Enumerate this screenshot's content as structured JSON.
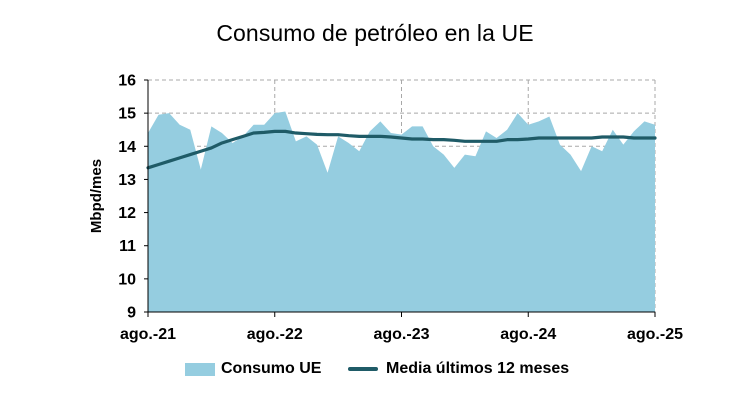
{
  "title": "Consumo de petróleo en la UE",
  "chart_data": {
    "type": "area",
    "title": "Consumo de petróleo en la UE",
    "xlabel": "",
    "ylabel": "Mbpd/mes",
    "ylim": [
      9,
      16
    ],
    "yticks": [
      9,
      10,
      11,
      12,
      13,
      14,
      15,
      16
    ],
    "xticks": [
      "ago.-21",
      "ago.-22",
      "ago.-23",
      "ago.-24",
      "ago.-25"
    ],
    "grid": true,
    "legend_position": "bottom",
    "x": [
      "ago.-21",
      "sep.-21",
      "oct.-21",
      "nov.-21",
      "dic.-21",
      "ene.-22",
      "feb.-22",
      "mar.-22",
      "abr.-22",
      "may.-22",
      "jun.-22",
      "jul.-22",
      "ago.-22",
      "sep.-22",
      "oct.-22",
      "nov.-22",
      "dic.-22",
      "ene.-23",
      "feb.-23",
      "mar.-23",
      "abr.-23",
      "may.-23",
      "jun.-23",
      "jul.-23",
      "ago.-23",
      "sep.-23",
      "oct.-23",
      "nov.-23",
      "dic.-23",
      "ene.-24",
      "feb.-24",
      "mar.-24",
      "abr.-24",
      "may.-24",
      "jun.-24",
      "jul.-24",
      "ago.-24",
      "sep.-24",
      "oct.-24",
      "nov.-24",
      "dic.-24",
      "ene.-25",
      "feb.-25",
      "mar.-25",
      "abr.-25",
      "may.-25",
      "jun.-25",
      "jul.-25",
      "ago.-25"
    ],
    "series": [
      {
        "name": "Consumo UE",
        "kind": "area",
        "color": "#95cde0",
        "values": [
          14.4,
          14.95,
          15.0,
          14.65,
          14.5,
          13.3,
          14.6,
          14.4,
          14.1,
          14.3,
          14.65,
          14.65,
          15.0,
          15.05,
          14.15,
          14.3,
          14.05,
          13.2,
          14.3,
          14.1,
          13.85,
          14.45,
          14.75,
          14.4,
          14.35,
          14.6,
          14.6,
          14.0,
          13.75,
          13.35,
          13.75,
          13.7,
          14.45,
          14.25,
          14.5,
          15.0,
          14.65,
          14.75,
          14.9,
          14.05,
          13.75,
          13.25,
          14.0,
          13.85,
          14.5,
          14.05,
          14.45,
          14.75,
          14.65
        ]
      },
      {
        "name": "Media últimos 12 meses",
        "kind": "line",
        "color": "#1f5b67",
        "values": [
          13.35,
          13.45,
          13.55,
          13.65,
          13.75,
          13.85,
          13.95,
          14.1,
          14.2,
          14.3,
          14.4,
          14.42,
          14.45,
          14.45,
          14.4,
          14.38,
          14.36,
          14.35,
          14.35,
          14.32,
          14.3,
          14.3,
          14.3,
          14.28,
          14.25,
          14.22,
          14.22,
          14.2,
          14.2,
          14.18,
          14.15,
          14.15,
          14.15,
          14.15,
          14.2,
          14.2,
          14.22,
          14.25,
          14.25,
          14.25,
          14.25,
          14.25,
          14.25,
          14.28,
          14.28,
          14.28,
          14.25,
          14.25,
          14.25
        ]
      }
    ]
  },
  "legend": {
    "area_label": "Consumo UE",
    "line_label": "Media últimos 12 meses"
  }
}
